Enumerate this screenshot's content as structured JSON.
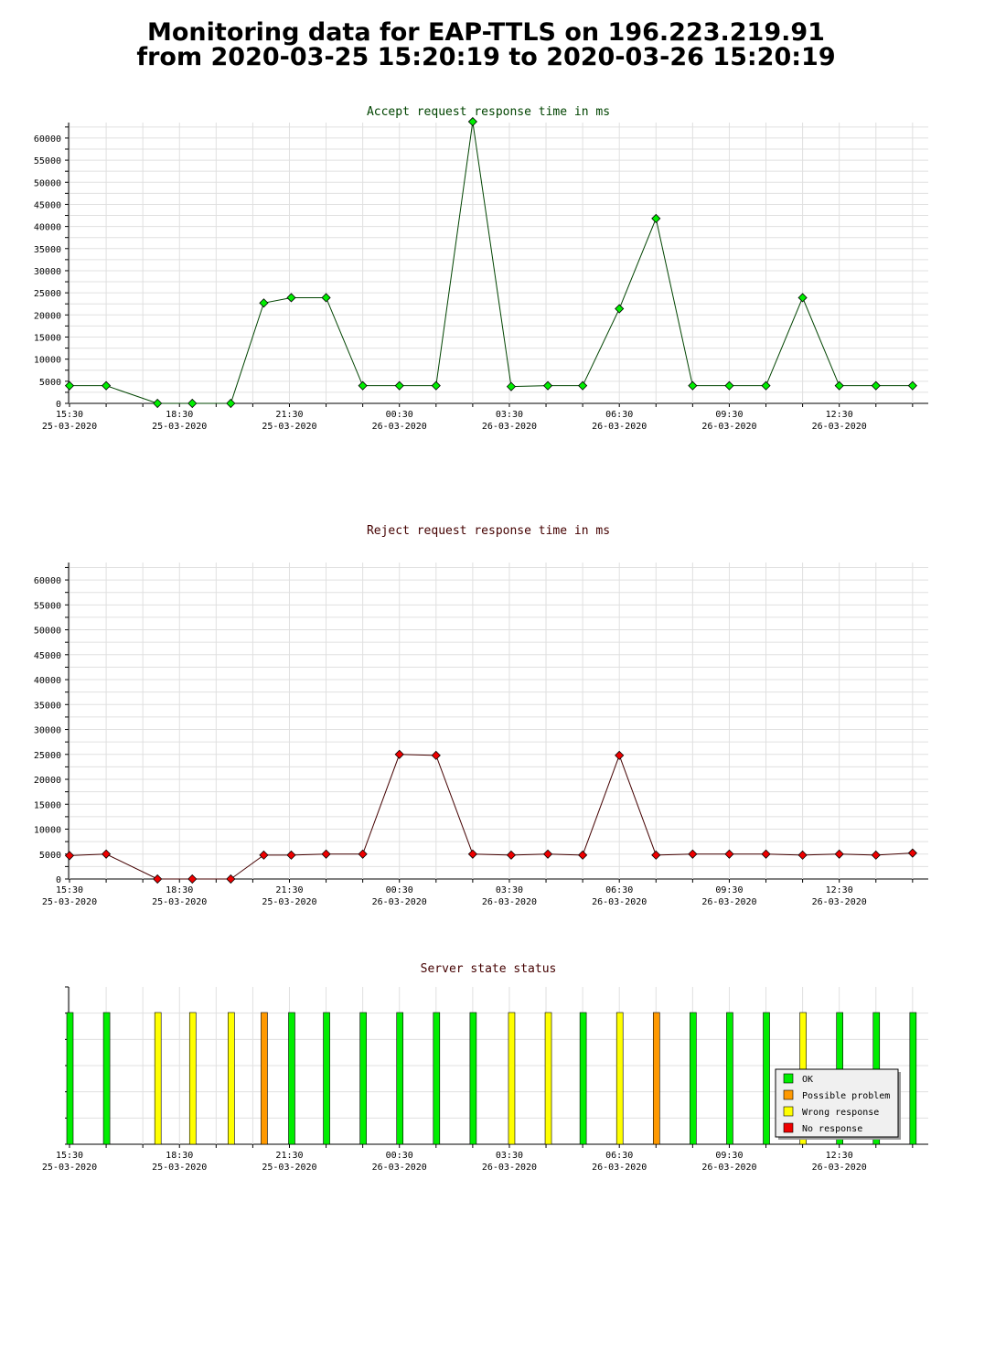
{
  "page": {
    "title_line1": "Monitoring data for EAP-TTLS on 196.223.219.91",
    "title_line2": "from 2020-03-25 15:20:19 to 2020-03-26 15:20:19"
  },
  "chart_data": [
    {
      "type": "line",
      "title": "Accept request response time in ms",
      "title_color": "#004400",
      "line_color": "#004400",
      "marker_color": "#00ee00",
      "ylim": [
        0,
        63500
      ],
      "yticks": [
        0,
        5000,
        10000,
        15000,
        20000,
        25000,
        30000,
        35000,
        40000,
        45000,
        50000,
        55000,
        60000
      ],
      "x_tick_labels": [
        {
          "time": "15:30",
          "date": "25-03-2020"
        },
        {
          "time": "18:30",
          "date": "25-03-2020"
        },
        {
          "time": "21:30",
          "date": "25-03-2020"
        },
        {
          "time": "00:30",
          "date": "26-03-2020"
        },
        {
          "time": "03:30",
          "date": "26-03-2020"
        },
        {
          "time": "06:30",
          "date": "26-03-2020"
        },
        {
          "time": "09:30",
          "date": "26-03-2020"
        },
        {
          "time": "12:30",
          "date": "26-03-2020"
        }
      ],
      "x_unit": "hours after 15:30 on 25-03-2020",
      "x": [
        0,
        1,
        2.4,
        3.35,
        4.4,
        5.3,
        6.05,
        7.0,
        8.0,
        9.0,
        10.0,
        11.0,
        12.05,
        13.05,
        14.0,
        15.0,
        16.0,
        17.0,
        18.0,
        19.0,
        20.0,
        21.0,
        22.0,
        23.0
      ],
      "y": [
        4000,
        4000,
        0,
        0,
        0,
        22700,
        23900,
        23900,
        4000,
        4000,
        4000,
        63700,
        3800,
        4000,
        4000,
        21400,
        41800,
        4000,
        4000,
        4000,
        23900,
        4000,
        4000,
        4000
      ]
    },
    {
      "type": "line",
      "title": "Reject request response time in ms",
      "title_color": "#440000",
      "line_color": "#440000",
      "marker_color": "#ee0000",
      "ylim": [
        0,
        63500
      ],
      "yticks": [
        0,
        5000,
        10000,
        15000,
        20000,
        25000,
        30000,
        35000,
        40000,
        45000,
        50000,
        55000,
        60000
      ],
      "x_tick_labels": [
        {
          "time": "15:30",
          "date": "25-03-2020"
        },
        {
          "time": "18:30",
          "date": "25-03-2020"
        },
        {
          "time": "21:30",
          "date": "25-03-2020"
        },
        {
          "time": "00:30",
          "date": "26-03-2020"
        },
        {
          "time": "03:30",
          "date": "26-03-2020"
        },
        {
          "time": "06:30",
          "date": "26-03-2020"
        },
        {
          "time": "09:30",
          "date": "26-03-2020"
        },
        {
          "time": "12:30",
          "date": "26-03-2020"
        }
      ],
      "x_unit": "hours after 15:30 on 25-03-2020",
      "x": [
        0,
        1,
        2.4,
        3.35,
        4.4,
        5.3,
        6.05,
        7.0,
        8.0,
        9.0,
        10.0,
        11.0,
        12.05,
        13.05,
        14.0,
        15.0,
        16.0,
        17.0,
        18.0,
        19.0,
        20.0,
        21.0,
        22.0,
        23.0
      ],
      "y": [
        4700,
        5000,
        0,
        0,
        0,
        4800,
        4800,
        5000,
        5000,
        25000,
        24800,
        5000,
        4800,
        5000,
        4800,
        24800,
        4800,
        5000,
        5000,
        5000,
        4800,
        5000,
        4800,
        5200
      ]
    },
    {
      "type": "bar",
      "title": "Server state status",
      "title_color": "#440000",
      "x_tick_labels": [
        {
          "time": "15:30",
          "date": "25-03-2020"
        },
        {
          "time": "18:30",
          "date": "25-03-2020"
        },
        {
          "time": "21:30",
          "date": "25-03-2020"
        },
        {
          "time": "00:30",
          "date": "26-03-2020"
        },
        {
          "time": "03:30",
          "date": "26-03-2020"
        },
        {
          "time": "06:30",
          "date": "26-03-2020"
        },
        {
          "time": "09:30",
          "date": "26-03-2020"
        },
        {
          "time": "12:30",
          "date": "26-03-2020"
        }
      ],
      "x_unit": "hours after 15:30 on 25-03-2020",
      "x": [
        0,
        1,
        2.4,
        3.35,
        4.4,
        5.3,
        6.05,
        7.0,
        8.0,
        9.0,
        10.0,
        11.0,
        12.05,
        13.05,
        14.0,
        15.0,
        16.0,
        17.0,
        18.0,
        19.0,
        20.0,
        21.0,
        22.0,
        23.0
      ],
      "states": [
        "OK",
        "OK",
        "Wrong response",
        "Wrong response",
        "Wrong response",
        "Possible problem",
        "OK",
        "OK",
        "OK",
        "OK",
        "OK",
        "OK",
        "Wrong response",
        "Wrong response",
        "OK",
        "Wrong response",
        "Possible problem",
        "OK",
        "OK",
        "OK",
        "Wrong response",
        "OK",
        "OK",
        "OK"
      ],
      "legend": [
        {
          "label": "OK",
          "color": "#00ee00"
        },
        {
          "label": "Possible problem",
          "color": "#ff9900"
        },
        {
          "label": "Wrong response",
          "color": "#ffff00"
        },
        {
          "label": "No response",
          "color": "#ee0000"
        }
      ],
      "legend_position": "lower-right"
    }
  ]
}
